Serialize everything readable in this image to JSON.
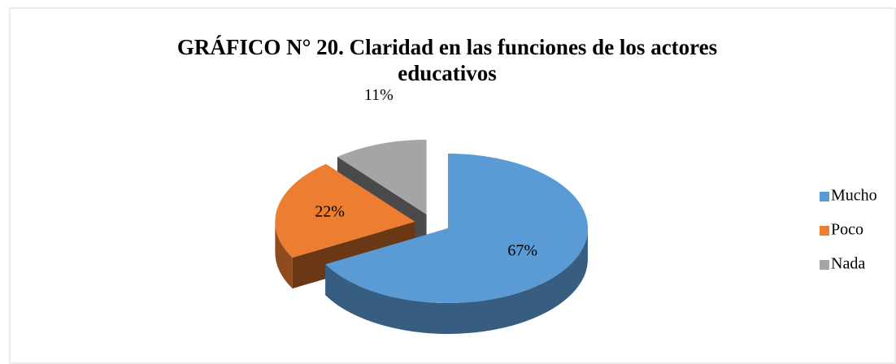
{
  "chart_data": {
    "type": "pie",
    "title": "GRÁFICO N° 20. Claridad en las funciones de los actores educativos",
    "categories": [
      "Mucho",
      "Poco",
      "Nada"
    ],
    "values": [
      67,
      22,
      11
    ],
    "value_labels": [
      "67%",
      "22%",
      "11%"
    ],
    "colors": [
      "#5b9bd5",
      "#ed7d31",
      "#a5a5a5"
    ],
    "legend": "right"
  }
}
